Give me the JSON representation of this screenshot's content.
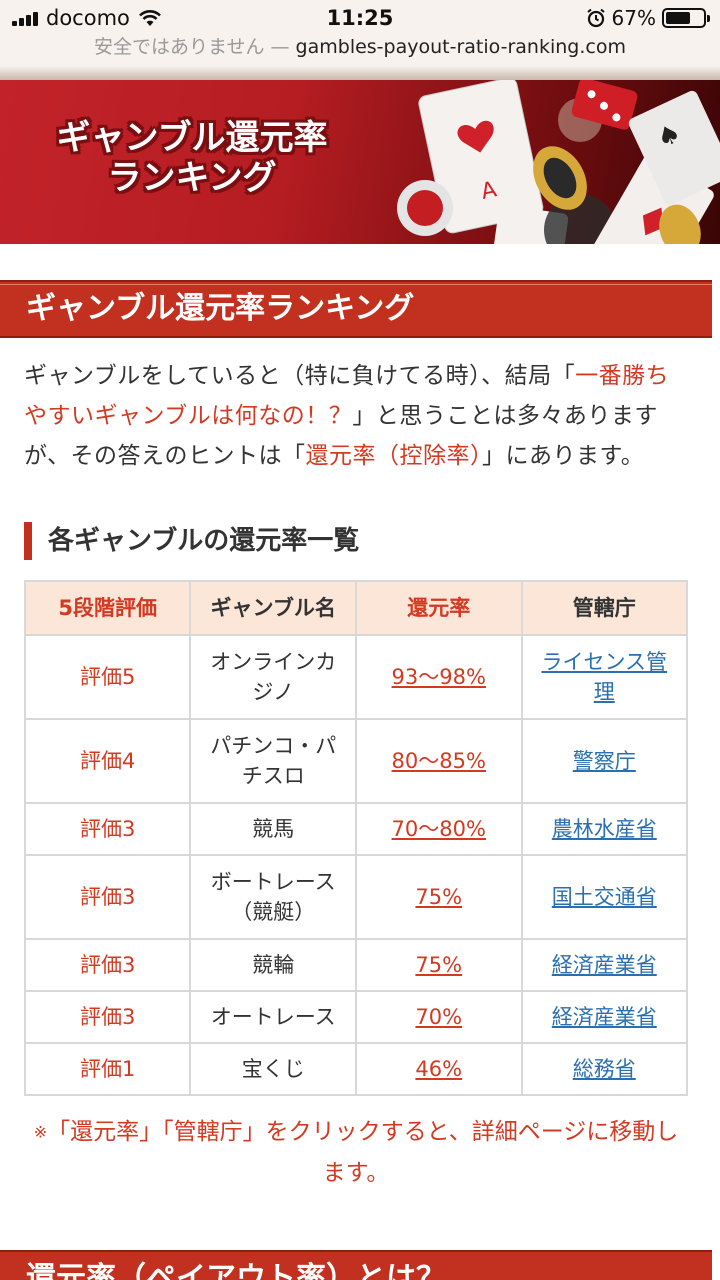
{
  "status": {
    "carrier": "docomo",
    "time": "11:25",
    "battery": "67%",
    "battery_level": 0.67
  },
  "url": {
    "security_note": "安全ではありません —",
    "domain": "gambles-payout-ratio-ranking.com"
  },
  "banner": {
    "title_line1": "ギャンブル還元率",
    "title_line2": "ランキング"
  },
  "section_title": "ギャンブル還元率ランキング",
  "intro": {
    "t1": "ギャンブルをしていると（特に負けてる時）、結局「",
    "h1": "一番勝ちやすいギャンブルは何なの！？",
    "t2": "」と思うことは多々ありますが、その答えのヒントは「",
    "h2": "還元率（控除率）",
    "t3": "」にあります。"
  },
  "table_heading": "各ギャンブルの還元率一覧",
  "table": {
    "headers": [
      "5段階評価",
      "ギャンブル名",
      "還元率",
      "管轄庁"
    ],
    "rows": [
      {
        "rating": "評価5",
        "name": "オンラインカジノ",
        "rate": "93〜98%",
        "agency": "ライセンス管理"
      },
      {
        "rating": "評価4",
        "name": "パチンコ・パチスロ",
        "rate": "80〜85%",
        "agency": "警察庁"
      },
      {
        "rating": "評価3",
        "name": "競馬",
        "rate": "70〜80%",
        "agency": "農林水産省"
      },
      {
        "rating": "評価3",
        "name": "ボートレース（競艇）",
        "rate": "75%",
        "agency": "国土交通省"
      },
      {
        "rating": "評価3",
        "name": "競輪",
        "rate": "75%",
        "agency": "経済産業省"
      },
      {
        "rating": "評価3",
        "name": "オートレース",
        "rate": "70%",
        "agency": "経済産業省"
      },
      {
        "rating": "評価1",
        "name": "宝くじ",
        "rate": "46%",
        "agency": "総務省"
      }
    ]
  },
  "note": {
    "mark": "※",
    "text": "「還元率」「管轄庁」をクリックすると、詳細ページに移動します。"
  },
  "next_section_title": "還元率（ペイアウト率）とは？"
}
